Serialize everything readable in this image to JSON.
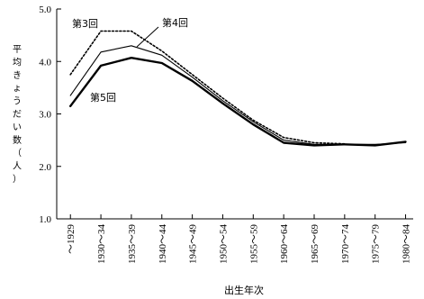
{
  "chart_data": {
    "type": "line",
    "title": "",
    "xlabel": "出生年次",
    "ylabel": "平均きょうだい数（人）",
    "ylim": [
      1.0,
      5.0
    ],
    "yticks": [
      1.0,
      2.0,
      3.0,
      4.0,
      5.0
    ],
    "ytick_labels": [
      "1.0",
      "2.0",
      "3.0",
      "4.0",
      "5.0"
    ],
    "grid": false,
    "categories": [
      "〜1929",
      "1930〜34",
      "1935〜39",
      "1940〜44",
      "1945〜49",
      "1950〜54",
      "1955〜59",
      "1960〜64",
      "1965〜69",
      "1970〜74",
      "1975〜79",
      "1980〜84"
    ],
    "series": [
      {
        "name": "第3回",
        "style": "dotted",
        "values": [
          3.75,
          4.58,
          4.58,
          4.2,
          3.75,
          3.3,
          2.88,
          2.55,
          2.45,
          2.43,
          null,
          null
        ]
      },
      {
        "name": "第4回",
        "style": "thin",
        "values": [
          3.35,
          4.18,
          4.3,
          4.12,
          3.7,
          3.25,
          2.85,
          2.5,
          2.42,
          2.42,
          2.42,
          2.45
        ]
      },
      {
        "name": "第5回",
        "style": "thick",
        "values": [
          3.15,
          3.92,
          4.07,
          3.97,
          3.63,
          3.2,
          2.8,
          2.45,
          2.4,
          2.42,
          2.4,
          2.47
        ]
      }
    ]
  }
}
